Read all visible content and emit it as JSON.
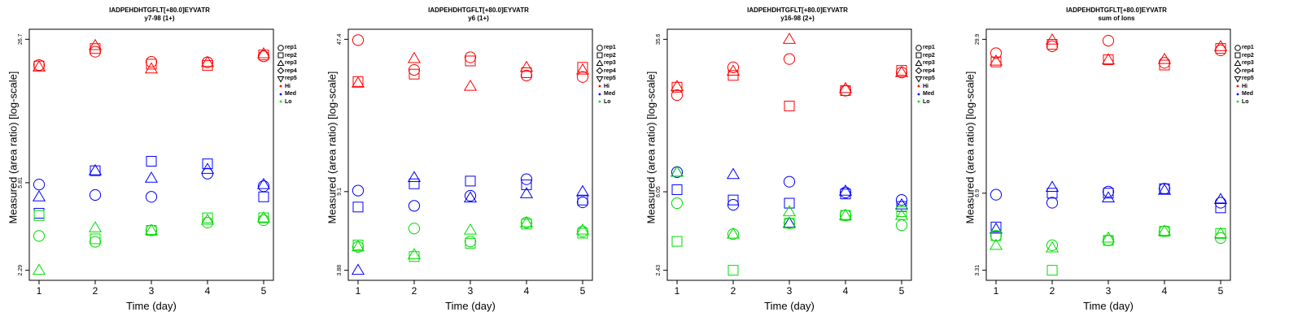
{
  "xlabel": "Time (day)",
  "ylabel": "Measured (area ratio) [log-scale]",
  "legend": [
    {
      "label": "rep1",
      "kind": "shape",
      "shape": "circle"
    },
    {
      "label": "rep2",
      "kind": "shape",
      "shape": "square"
    },
    {
      "label": "rep3",
      "kind": "shape",
      "shape": "triangle"
    },
    {
      "label": "rep4",
      "kind": "shape",
      "shape": "diamond"
    },
    {
      "label": "rep5",
      "kind": "shape",
      "shape": "triangle-down"
    },
    {
      "label": "Hi",
      "kind": "dot",
      "color": "#ff0000"
    },
    {
      "label": "Med",
      "kind": "dot",
      "color": "#0000ff"
    },
    {
      "label": "Lo",
      "kind": "dot",
      "color": "#00dd00"
    }
  ],
  "colors": {
    "Hi": "#ff0000",
    "Med": "#0000ff",
    "Lo": "#00dd00"
  },
  "chart_data": [
    {
      "type": "scatter",
      "title": "IADPEHDHTGFLT[+80.0]EYVATR",
      "subtitle": "y7-98 (1+)",
      "log_y": true,
      "xlim": [
        1,
        5
      ],
      "ylim": [
        2.29,
        26.7
      ],
      "yticks": [
        2.29,
        5.81,
        26.7
      ],
      "xticks": [
        1,
        2,
        3,
        4,
        5
      ],
      "series": [
        {
          "group": "Hi",
          "shape": "circle",
          "x": [
            1,
            2,
            3,
            4,
            5
          ],
          "y": [
            20.3,
            23.4,
            21.0,
            20.9,
            22.3
          ]
        },
        {
          "group": "Hi",
          "shape": "square",
          "x": [
            1,
            2,
            3,
            4,
            5
          ],
          "y": [
            20.1,
            24.2,
            20.5,
            20.2,
            22.6
          ]
        },
        {
          "group": "Hi",
          "shape": "triangle",
          "x": [
            1,
            2,
            3,
            4,
            5
          ],
          "y": [
            19.9,
            25.0,
            19.5,
            20.9,
            22.9
          ]
        },
        {
          "group": "Med",
          "shape": "circle",
          "x": [
            1,
            2,
            3,
            4,
            5
          ],
          "y": [
            5.7,
            5.1,
            5.0,
            6.4,
            5.6
          ]
        },
        {
          "group": "Med",
          "shape": "square",
          "x": [
            1,
            2,
            3,
            4,
            5
          ],
          "y": [
            4.2,
            6.6,
            7.3,
            7.1,
            5.0
          ]
        },
        {
          "group": "Med",
          "shape": "triangle",
          "x": [
            1,
            2,
            3,
            4,
            5
          ],
          "y": [
            5.0,
            6.6,
            6.1,
            6.7,
            5.7
          ]
        },
        {
          "group": "Lo",
          "shape": "circle",
          "x": [
            1,
            2,
            3,
            4,
            5
          ],
          "y": [
            3.3,
            3.1,
            3.5,
            3.8,
            3.9
          ]
        },
        {
          "group": "Lo",
          "shape": "square",
          "x": [
            1,
            2,
            3,
            4,
            5
          ],
          "y": [
            4.1,
            3.2,
            3.5,
            4.0,
            4.0
          ]
        },
        {
          "group": "Lo",
          "shape": "triangle",
          "x": [
            1,
            2,
            3,
            4,
            5
          ],
          "y": [
            2.29,
            3.6,
            3.5,
            3.9,
            4.0
          ]
        }
      ]
    },
    {
      "type": "scatter",
      "title": "IADPEHDHTGFLT[+80.0]EYVATR",
      "subtitle": "y6 (1+)",
      "log_y": true,
      "xlim": [
        1,
        5
      ],
      "ylim": [
        3.88,
        47.4
      ],
      "yticks": [
        3.88,
        9.1,
        47.4
      ],
      "xticks": [
        1,
        2,
        3,
        4,
        5
      ],
      "series": [
        {
          "group": "Hi",
          "shape": "circle",
          "x": [
            1,
            2,
            3,
            4,
            5
          ],
          "y": [
            47.0,
            34.0,
            39.0,
            32.0,
            31.5
          ]
        },
        {
          "group": "Hi",
          "shape": "square",
          "x": [
            1,
            2,
            3,
            4,
            5
          ],
          "y": [
            30.0,
            32.5,
            37.5,
            33.0,
            35.0
          ]
        },
        {
          "group": "Hi",
          "shape": "triangle",
          "x": [
            1,
            2,
            3,
            4,
            5
          ],
          "y": [
            29.5,
            38.5,
            28.5,
            35.0,
            34.0
          ]
        },
        {
          "group": "Med",
          "shape": "circle",
          "x": [
            1,
            2,
            3,
            4,
            5
          ],
          "y": [
            9.2,
            7.8,
            8.7,
            10.4,
            8.1
          ]
        },
        {
          "group": "Med",
          "shape": "square",
          "x": [
            1,
            2,
            3,
            4,
            5
          ],
          "y": [
            7.7,
            9.9,
            10.2,
            9.8,
            8.3
          ]
        },
        {
          "group": "Med",
          "shape": "triangle",
          "x": [
            1,
            2,
            3,
            4,
            5
          ],
          "y": [
            3.88,
            10.6,
            8.5,
            8.9,
            9.1
          ]
        },
        {
          "group": "Lo",
          "shape": "circle",
          "x": [
            1,
            2,
            3,
            4,
            5
          ],
          "y": [
            5.0,
            6.1,
            5.3,
            6.5,
            5.9
          ]
        },
        {
          "group": "Lo",
          "shape": "square",
          "x": [
            1,
            2,
            3,
            4,
            5
          ],
          "y": [
            5.1,
            4.5,
            5.2,
            6.4,
            5.8
          ]
        },
        {
          "group": "Lo",
          "shape": "triangle",
          "x": [
            1,
            2,
            3,
            4,
            5
          ],
          "y": [
            5.0,
            4.6,
            6.0,
            6.5,
            6.0
          ]
        }
      ]
    },
    {
      "type": "scatter",
      "title": "IADPEHDHTGFLT[+80.0]EYVATR",
      "subtitle": "y16-98 (2+)",
      "log_y": true,
      "xlim": [
        1,
        5
      ],
      "ylim": [
        2.43,
        35.6
      ],
      "yticks": [
        2.43,
        6.05,
        35.6
      ],
      "xticks": [
        1,
        2,
        3,
        4,
        5
      ],
      "series": [
        {
          "group": "Hi",
          "shape": "circle",
          "x": [
            1,
            2,
            3,
            4,
            5
          ],
          "y": [
            18.6,
            25.7,
            28.3,
            19.6,
            24.2
          ]
        },
        {
          "group": "Hi",
          "shape": "square",
          "x": [
            1,
            2,
            3,
            4,
            5
          ],
          "y": [
            20.4,
            23.4,
            16.4,
            19.6,
            24.8
          ]
        },
        {
          "group": "Hi",
          "shape": "triangle",
          "x": [
            1,
            2,
            3,
            4,
            5
          ],
          "y": [
            20.6,
            24.6,
            35.6,
            20.1,
            24.2
          ]
        },
        {
          "group": "Med",
          "shape": "circle",
          "x": [
            1,
            2,
            3,
            4,
            5
          ],
          "y": [
            7.6,
            5.2,
            6.8,
            6.0,
            5.5
          ]
        },
        {
          "group": "Med",
          "shape": "square",
          "x": [
            1,
            2,
            3,
            4,
            5
          ],
          "y": [
            6.2,
            5.5,
            5.3,
            5.9,
            5.1
          ]
        },
        {
          "group": "Med",
          "shape": "triangle",
          "x": [
            1,
            2,
            3,
            4,
            5
          ],
          "y": [
            7.6,
            7.4,
            4.2,
            6.1,
            5.2
          ]
        },
        {
          "group": "Lo",
          "shape": "circle",
          "x": [
            1,
            2,
            3,
            4,
            5
          ],
          "y": [
            5.3,
            3.7,
            4.2,
            4.6,
            4.1
          ]
        },
        {
          "group": "Lo",
          "shape": "square",
          "x": [
            1,
            2,
            3,
            4,
            5
          ],
          "y": [
            3.4,
            2.43,
            4.2,
            4.6,
            4.8
          ]
        },
        {
          "group": "Lo",
          "shape": "triangle",
          "x": [
            1,
            2,
            3,
            4,
            5
          ],
          "y": [
            7.6,
            3.7,
            4.8,
            4.6,
            4.6
          ]
        }
      ]
    },
    {
      "type": "scatter",
      "title": "IADPEHDHTGFLT[+80.0]EYVATR",
      "subtitle": "sum of Ions",
      "log_y": true,
      "xlim": [
        1,
        5
      ],
      "ylim": [
        3.31,
        29.9
      ],
      "yticks": [
        3.31,
        6.9,
        29.9
      ],
      "xticks": [
        1,
        2,
        3,
        4,
        5
      ],
      "series": [
        {
          "group": "Hi",
          "shape": "circle",
          "x": [
            1,
            2,
            3,
            4,
            5
          ],
          "y": [
            26.2,
            28.0,
            29.5,
            23.9,
            26.9
          ]
        },
        {
          "group": "Hi",
          "shape": "square",
          "x": [
            1,
            2,
            3,
            4,
            5
          ],
          "y": [
            24.1,
            28.5,
            24.6,
            23.4,
            27.4
          ]
        },
        {
          "group": "Hi",
          "shape": "triangle",
          "x": [
            1,
            2,
            3,
            4,
            5
          ],
          "y": [
            24.3,
            29.7,
            24.6,
            24.7,
            27.9
          ]
        },
        {
          "group": "Med",
          "shape": "circle",
          "x": [
            1,
            2,
            3,
            4,
            5
          ],
          "y": [
            6.8,
            6.3,
            7.0,
            7.2,
            6.3
          ]
        },
        {
          "group": "Med",
          "shape": "square",
          "x": [
            1,
            2,
            3,
            4,
            5
          ],
          "y": [
            5.0,
            6.9,
            6.9,
            7.2,
            6.0
          ]
        },
        {
          "group": "Med",
          "shape": "triangle",
          "x": [
            1,
            2,
            3,
            4,
            5
          ],
          "y": [
            4.9,
            7.3,
            6.6,
            7.1,
            6.5
          ]
        },
        {
          "group": "Lo",
          "shape": "circle",
          "x": [
            1,
            2,
            3,
            4,
            5
          ],
          "y": [
            4.6,
            4.2,
            4.4,
            4.8,
            4.5
          ]
        },
        {
          "group": "Lo",
          "shape": "square",
          "x": [
            1,
            2,
            3,
            4,
            5
          ],
          "y": [
            4.6,
            3.31,
            4.4,
            4.8,
            4.7
          ]
        },
        {
          "group": "Lo",
          "shape": "triangle",
          "x": [
            1,
            2,
            3,
            4,
            5
          ],
          "y": [
            4.2,
            4.1,
            4.5,
            4.8,
            4.7
          ]
        }
      ]
    }
  ]
}
